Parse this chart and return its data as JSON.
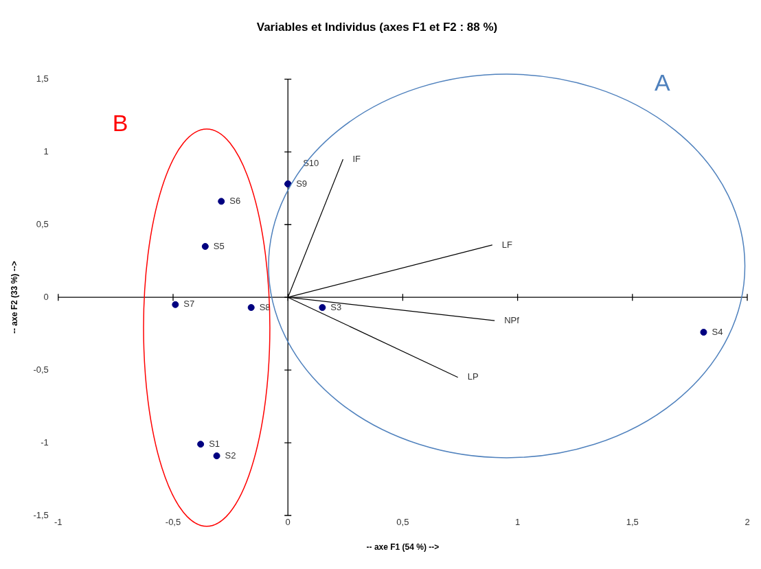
{
  "chart_data": {
    "type": "scatter",
    "title": "Variables et Individus (axes F1 et F2 : 88 %)",
    "xlabel": "-- axe F1 (54 %) -->",
    "ylabel": "-- axe F2 (33 %) -->",
    "xlim": [
      -1,
      2
    ],
    "ylim": [
      -1.5,
      1.5
    ],
    "xticks": [
      -1,
      {
        "value": -0.5,
        "label": "-0,5"
      },
      0,
      {
        "value": 0.5,
        "label": "0,5"
      },
      1,
      {
        "value": 1.5,
        "label": "1,5"
      },
      2
    ],
    "yticks": [
      {
        "value": -1.5,
        "label": "-1,5"
      },
      -1,
      {
        "value": -0.5,
        "label": "-0,5"
      },
      0,
      {
        "value": 0.5,
        "label": "0,5"
      },
      1,
      {
        "value": 1.5,
        "label": "1,5"
      }
    ],
    "series": [
      {
        "marker": "circle",
        "color": "#000080",
        "x": [
          0,
          0,
          -0.29,
          -0.36,
          -0.49,
          -0.16,
          0.15,
          1.81,
          -0.38,
          -0.31
        ],
        "values": [
          0.78,
          0.78,
          0.66,
          0.35,
          -0.05,
          -0.07,
          -0.07,
          -0.24,
          -1.01,
          -1.09
        ],
        "value_labels": [
          "S10",
          "S9",
          "S6",
          "S5",
          "S7",
          "S8",
          "S3",
          "S4",
          "S1",
          "S2"
        ]
      },
      {
        "type": "line",
        "name": "IF",
        "color": "#000000",
        "x": [
          0,
          0.24
        ],
        "values": [
          0,
          0.95
        ]
      },
      {
        "type": "line",
        "name": "LF",
        "color": "#000000",
        "x": [
          0,
          0.89
        ],
        "values": [
          0,
          0.36
        ]
      },
      {
        "type": "line",
        "name": "NPf",
        "color": "#000000",
        "x": [
          0,
          0.9
        ],
        "values": [
          0,
          -0.16
        ]
      },
      {
        "type": "line",
        "name": "LP",
        "color": "#000000",
        "x": [
          0,
          0.74
        ],
        "values": [
          0,
          -0.55
        ]
      }
    ],
    "annotations": [
      "A",
      "B"
    ]
  }
}
